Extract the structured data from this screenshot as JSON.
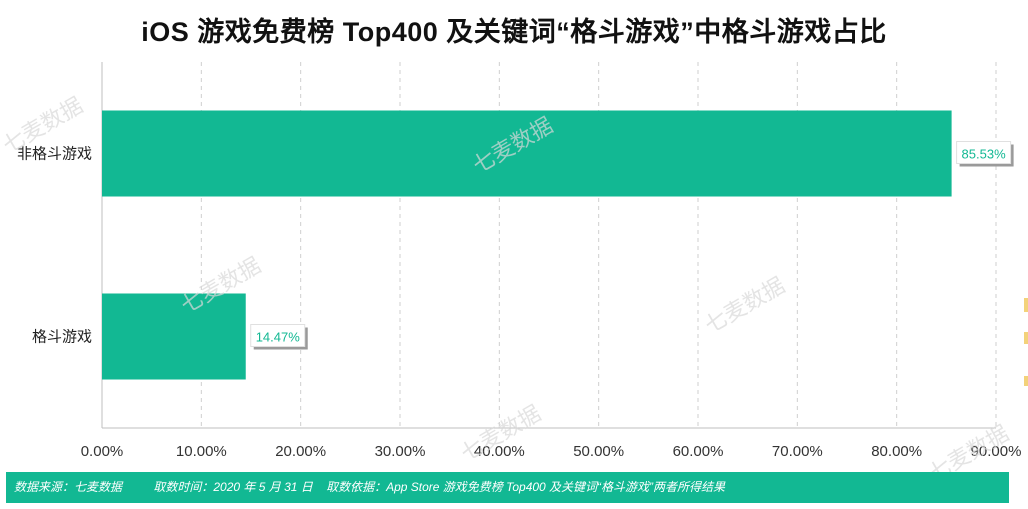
{
  "title": "iOS 游戏免费榜 Top400 及关键词“格斗游戏”中格斗游戏占比",
  "footer": {
    "source": "数据来源：七麦数据",
    "time": "取数时间：2020 年 5 月 31 日",
    "basis": "取数依据：App Store 游戏免费榜 Top400 及关键词“格斗游戏”两者所得结果"
  },
  "watermark_text": "七麦数据",
  "colors": {
    "bar": "#12b893",
    "label_text": "#12b893",
    "footer_bg": "#12b893"
  },
  "chart_data": {
    "type": "bar",
    "orientation": "horizontal",
    "categories": [
      "非格斗游戏",
      "格斗游戏"
    ],
    "values": [
      85.53,
      14.47
    ],
    "data_labels": [
      "85.53%",
      "14.47%"
    ],
    "xlim": [
      0,
      90
    ],
    "xticks": [
      0,
      10,
      20,
      30,
      40,
      50,
      60,
      70,
      80,
      90
    ],
    "xtick_labels": [
      "0.00%",
      "10.00%",
      "20.00%",
      "30.00%",
      "40.00%",
      "50.00%",
      "60.00%",
      "70.00%",
      "80.00%",
      "90.00%"
    ],
    "grid": "vertical-dashed",
    "legend": "none"
  }
}
